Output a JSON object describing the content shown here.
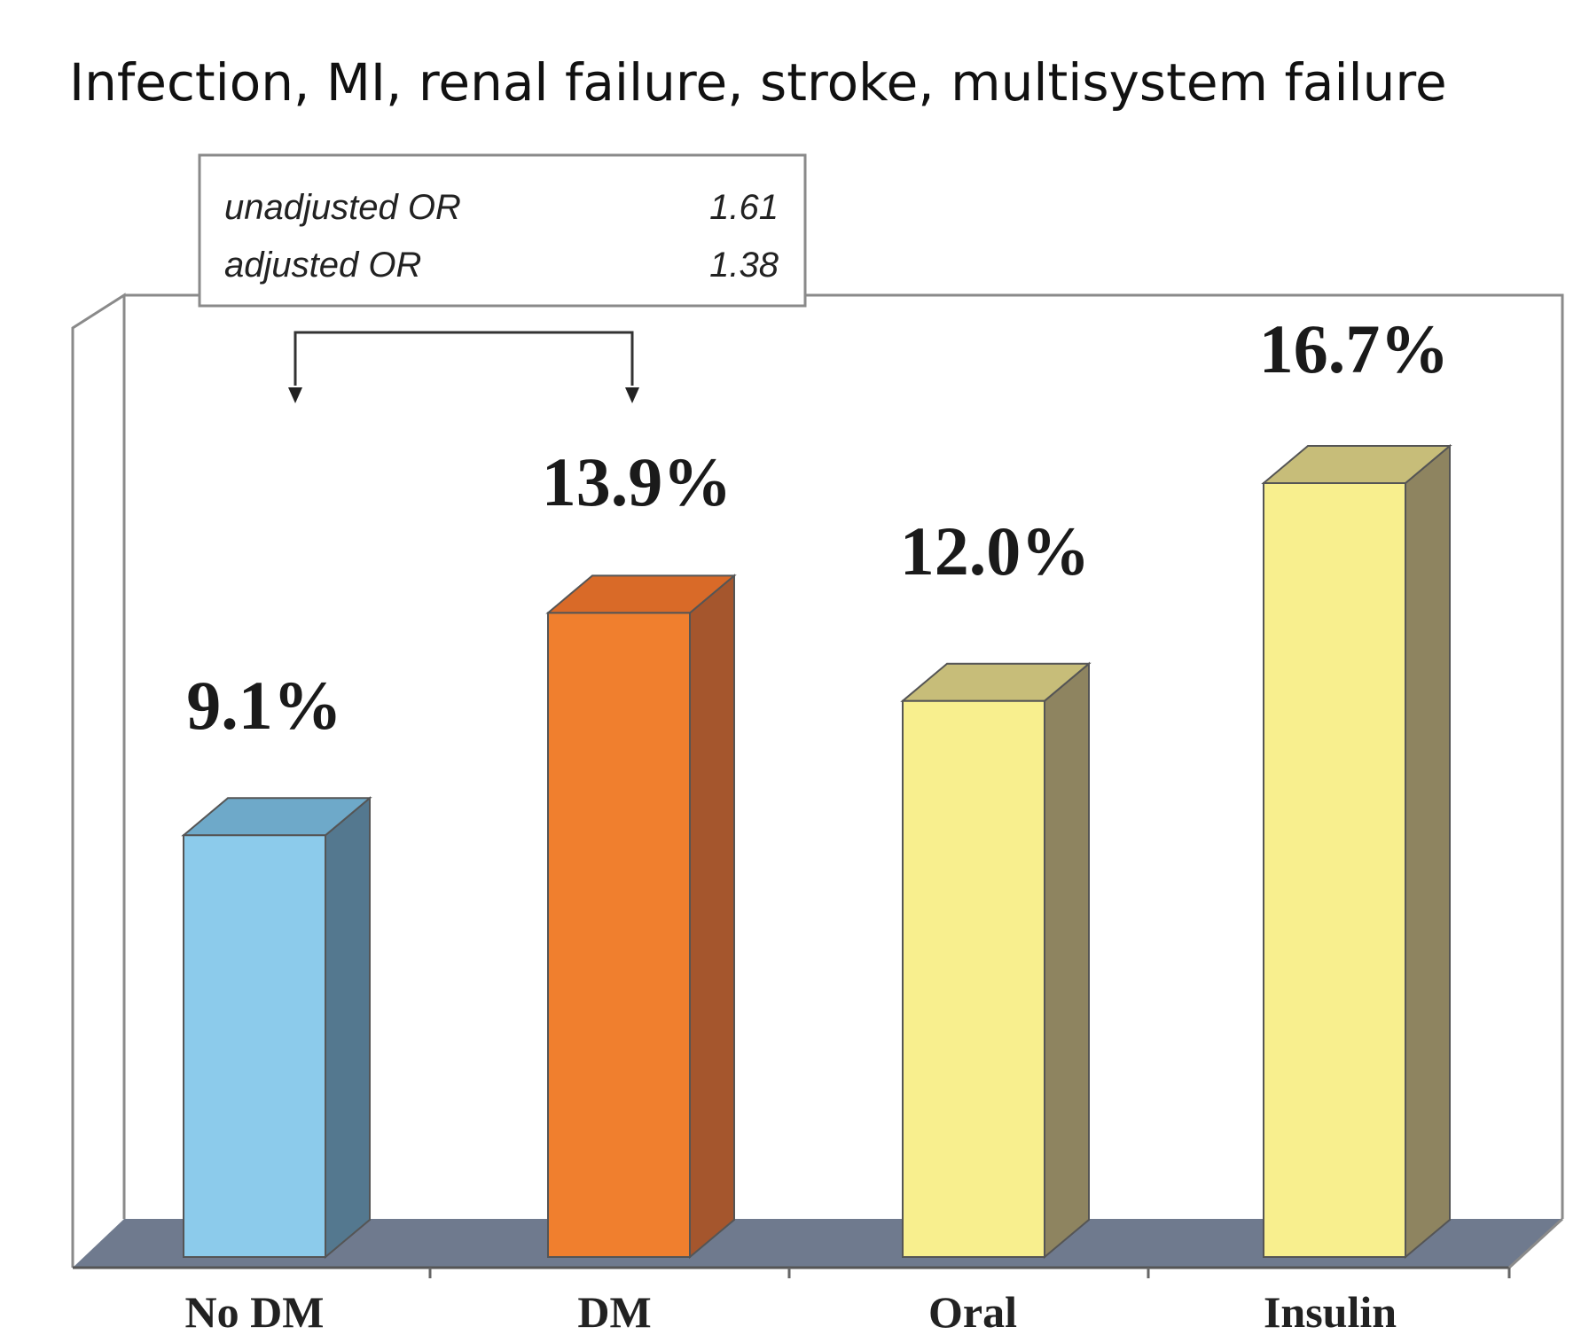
{
  "chart_data": {
    "type": "bar",
    "title": "Infection, MI, renal failure, stroke, multisystem failure",
    "xlabel": "",
    "ylabel": "",
    "ylim": [
      0,
      20
    ],
    "grid": false,
    "legend": "none",
    "categories": [
      "No DM",
      "DM",
      "Oral",
      "Insulin"
    ],
    "values": [
      9.1,
      13.9,
      12.0,
      16.7
    ],
    "value_labels": [
      "9.1%",
      "13.9%",
      "12.0%",
      "16.7%"
    ],
    "bar_colors": [
      {
        "front": "#8ccbeb",
        "side": "#54788f",
        "top": "#6ea9c9"
      },
      {
        "front": "#f07f2e",
        "side": "#a5562d",
        "top": "#d96a28"
      },
      {
        "front": "#f8ef8e",
        "side": "#8e8460",
        "top": "#c7bd79"
      },
      {
        "front": "#f8ef8e",
        "side": "#8e8460",
        "top": "#c7bd79"
      }
    ],
    "annotation": {
      "rows": [
        {
          "label": "unadjusted OR",
          "value": "1.61"
        },
        {
          "label": "adjusted OR",
          "value": "1.38"
        }
      ],
      "compares": [
        "No DM",
        "DM"
      ]
    }
  }
}
